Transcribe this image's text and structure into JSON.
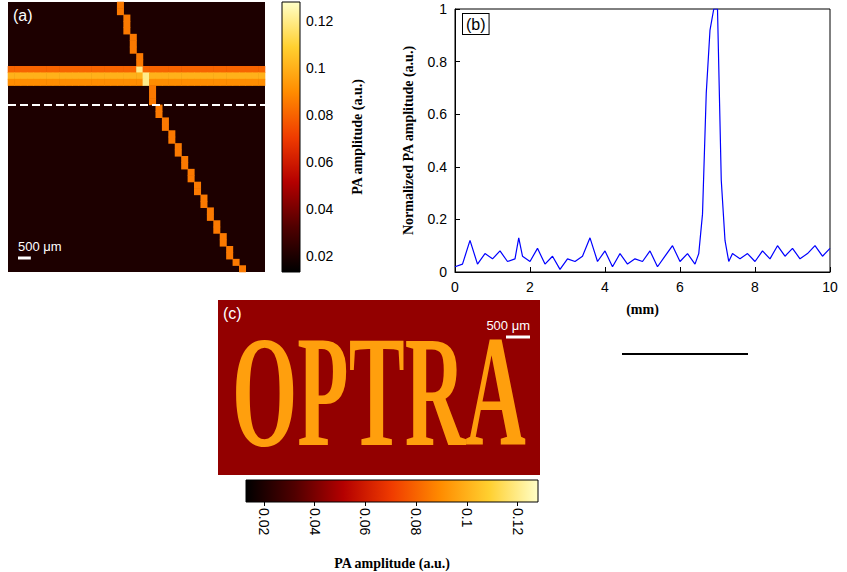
{
  "chart_data": [
    {
      "type": "heatmap",
      "panel": "(a)",
      "xlim": [
        0,
        10
      ],
      "ylim": [
        0,
        10.5
      ],
      "tick_labels": false,
      "cell_size": 0.25,
      "background": 0.02,
      "profile_y": 4.0,
      "scale_bar": {
        "length": 0.5,
        "label": "500 μm"
      },
      "color_bar": {
        "range": [
          0.013,
          0.128
        ],
        "ticks": [
          0.02,
          0.04,
          0.06,
          0.08,
          0.1,
          0.12
        ],
        "label": "PA amplitude (a.u.)",
        "colors": [
          "#000000",
          "#500000",
          "#b40000",
          "#f03c00",
          "#ff8c00",
          "#ffd030",
          "#ffffc8"
        ]
      },
      "cells": [
        [
          0.125,
          2.625,
          0.08
        ],
        [
          0.375,
          2.625,
          0.08
        ],
        [
          0.625,
          2.625,
          0.08
        ],
        [
          0.875,
          2.625,
          0.08
        ],
        [
          1.125,
          2.625,
          0.08
        ],
        [
          1.375,
          2.625,
          0.08
        ],
        [
          1.625,
          2.625,
          0.08
        ],
        [
          1.875,
          2.625,
          0.08
        ],
        [
          2.125,
          2.625,
          0.08
        ],
        [
          2.375,
          2.625,
          0.08
        ],
        [
          2.625,
          2.625,
          0.08
        ],
        [
          2.875,
          2.625,
          0.08
        ],
        [
          3.125,
          2.625,
          0.08
        ],
        [
          3.375,
          2.625,
          0.08
        ],
        [
          3.625,
          2.625,
          0.08
        ],
        [
          3.875,
          2.625,
          0.08
        ],
        [
          4.125,
          2.625,
          0.08
        ],
        [
          4.375,
          2.625,
          0.08
        ],
        [
          4.625,
          2.625,
          0.08
        ],
        [
          4.875,
          2.625,
          0.08
        ],
        [
          5.125,
          2.625,
          0.12
        ],
        [
          5.375,
          2.625,
          0.08
        ],
        [
          5.625,
          2.625,
          0.08
        ],
        [
          5.875,
          2.625,
          0.08
        ],
        [
          6.125,
          2.625,
          0.08
        ],
        [
          6.375,
          2.625,
          0.08
        ],
        [
          6.625,
          2.625,
          0.08
        ],
        [
          6.875,
          2.625,
          0.08
        ],
        [
          7.125,
          2.625,
          0.08
        ],
        [
          7.375,
          2.625,
          0.08
        ],
        [
          7.625,
          2.625,
          0.08
        ],
        [
          7.875,
          2.625,
          0.08
        ],
        [
          8.125,
          2.625,
          0.08
        ],
        [
          8.375,
          2.625,
          0.08
        ],
        [
          8.625,
          2.625,
          0.08
        ],
        [
          8.875,
          2.625,
          0.08
        ],
        [
          9.125,
          2.625,
          0.08
        ],
        [
          9.375,
          2.625,
          0.08
        ],
        [
          9.625,
          2.625,
          0.08
        ],
        [
          9.875,
          2.625,
          0.08
        ],
        [
          0.125,
          2.875,
          0.1
        ],
        [
          0.375,
          2.875,
          0.1
        ],
        [
          0.625,
          2.875,
          0.1
        ],
        [
          0.875,
          2.875,
          0.1
        ],
        [
          1.125,
          2.875,
          0.1
        ],
        [
          1.375,
          2.875,
          0.1
        ],
        [
          1.625,
          2.875,
          0.1
        ],
        [
          1.875,
          2.875,
          0.1
        ],
        [
          2.125,
          2.875,
          0.1
        ],
        [
          2.375,
          2.875,
          0.1
        ],
        [
          2.625,
          2.875,
          0.1
        ],
        [
          2.875,
          2.875,
          0.1
        ],
        [
          3.125,
          2.875,
          0.1
        ],
        [
          3.375,
          2.875,
          0.1
        ],
        [
          3.625,
          2.875,
          0.1
        ],
        [
          3.875,
          2.875,
          0.1
        ],
        [
          4.125,
          2.875,
          0.1
        ],
        [
          4.375,
          2.875,
          0.1
        ],
        [
          4.625,
          2.875,
          0.1
        ],
        [
          4.875,
          2.875,
          0.1
        ],
        [
          5.125,
          2.875,
          0.1
        ],
        [
          5.375,
          2.875,
          0.12
        ],
        [
          5.625,
          2.875,
          0.1
        ],
        [
          5.875,
          2.875,
          0.1
        ],
        [
          6.125,
          2.875,
          0.1
        ],
        [
          6.375,
          2.875,
          0.1
        ],
        [
          6.625,
          2.875,
          0.1
        ],
        [
          6.875,
          2.875,
          0.1
        ],
        [
          7.125,
          2.875,
          0.1
        ],
        [
          7.375,
          2.875,
          0.1
        ],
        [
          7.625,
          2.875,
          0.1
        ],
        [
          7.875,
          2.875,
          0.1
        ],
        [
          8.125,
          2.875,
          0.1
        ],
        [
          8.375,
          2.875,
          0.1
        ],
        [
          8.625,
          2.875,
          0.1
        ],
        [
          8.875,
          2.875,
          0.1
        ],
        [
          9.125,
          2.875,
          0.1
        ],
        [
          9.375,
          2.875,
          0.1
        ],
        [
          9.625,
          2.875,
          0.1
        ],
        [
          9.875,
          2.875,
          0.1
        ],
        [
          0.125,
          3.125,
          0.09
        ],
        [
          0.375,
          3.125,
          0.09
        ],
        [
          0.625,
          3.125,
          0.09
        ],
        [
          0.875,
          3.125,
          0.09
        ],
        [
          1.125,
          3.125,
          0.09
        ],
        [
          1.375,
          3.125,
          0.09
        ],
        [
          1.625,
          3.125,
          0.09
        ],
        [
          1.875,
          3.125,
          0.09
        ],
        [
          2.125,
          3.125,
          0.09
        ],
        [
          2.375,
          3.125,
          0.09
        ],
        [
          2.625,
          3.125,
          0.09
        ],
        [
          2.875,
          3.125,
          0.09
        ],
        [
          3.125,
          3.125,
          0.09
        ],
        [
          3.375,
          3.125,
          0.09
        ],
        [
          3.625,
          3.125,
          0.09
        ],
        [
          3.875,
          3.125,
          0.09
        ],
        [
          4.125,
          3.125,
          0.09
        ],
        [
          4.375,
          3.125,
          0.09
        ],
        [
          4.625,
          3.125,
          0.09
        ],
        [
          4.875,
          3.125,
          0.09
        ],
        [
          5.125,
          3.125,
          0.09
        ],
        [
          5.375,
          3.125,
          0.12
        ],
        [
          5.625,
          3.125,
          0.09
        ],
        [
          5.875,
          3.125,
          0.09
        ],
        [
          6.125,
          3.125,
          0.09
        ],
        [
          6.375,
          3.125,
          0.09
        ],
        [
          6.625,
          3.125,
          0.09
        ],
        [
          6.875,
          3.125,
          0.09
        ],
        [
          7.125,
          3.125,
          0.09
        ],
        [
          7.375,
          3.125,
          0.09
        ],
        [
          7.625,
          3.125,
          0.09
        ],
        [
          7.875,
          3.125,
          0.09
        ],
        [
          8.125,
          3.125,
          0.09
        ],
        [
          8.375,
          3.125,
          0.09
        ],
        [
          8.625,
          3.125,
          0.09
        ],
        [
          8.875,
          3.125,
          0.09
        ],
        [
          9.125,
          3.125,
          0.09
        ],
        [
          9.375,
          3.125,
          0.09
        ],
        [
          9.625,
          3.125,
          0.09
        ],
        [
          9.875,
          3.125,
          0.09
        ],
        [
          4.375,
          0.125,
          0.085
        ],
        [
          4.375,
          0.375,
          0.085
        ],
        [
          4.625,
          0.625,
          0.085
        ],
        [
          4.625,
          0.875,
          0.085
        ],
        [
          4.625,
          1.125,
          0.085
        ],
        [
          4.875,
          1.375,
          0.085
        ],
        [
          4.875,
          1.625,
          0.085
        ],
        [
          4.875,
          1.875,
          0.085
        ],
        [
          5.125,
          2.125,
          0.085
        ],
        [
          5.125,
          2.375,
          0.085
        ],
        [
          5.625,
          3.375,
          0.085
        ],
        [
          5.625,
          3.625,
          0.085
        ],
        [
          5.625,
          3.875,
          0.085
        ],
        [
          5.875,
          4.125,
          0.085
        ],
        [
          5.875,
          4.375,
          0.085
        ],
        [
          6.125,
          4.625,
          0.085
        ],
        [
          6.125,
          4.875,
          0.085
        ],
        [
          6.375,
          5.125,
          0.085
        ],
        [
          6.375,
          5.375,
          0.085
        ],
        [
          6.625,
          5.625,
          0.085
        ],
        [
          6.625,
          5.875,
          0.085
        ],
        [
          6.875,
          6.125,
          0.085
        ],
        [
          6.875,
          6.375,
          0.085
        ],
        [
          7.125,
          6.625,
          0.085
        ],
        [
          7.125,
          6.875,
          0.085
        ],
        [
          7.375,
          7.125,
          0.085
        ],
        [
          7.375,
          7.375,
          0.085
        ],
        [
          7.625,
          7.625,
          0.085
        ],
        [
          7.625,
          7.875,
          0.085
        ],
        [
          7.875,
          8.125,
          0.085
        ],
        [
          7.875,
          8.375,
          0.085
        ],
        [
          8.125,
          8.625,
          0.085
        ],
        [
          8.125,
          8.875,
          0.085
        ],
        [
          8.375,
          9.125,
          0.085
        ],
        [
          8.375,
          9.375,
          0.085
        ],
        [
          8.625,
          9.625,
          0.085
        ],
        [
          8.625,
          9.875,
          0.085
        ],
        [
          8.875,
          10.125,
          0.085
        ],
        [
          9.125,
          10.375,
          0.085
        ]
      ]
    },
    {
      "type": "line",
      "panel": "(b)",
      "color": "#0000ff",
      "grid": false,
      "xlabel": "(mm)",
      "ylabel": "Normalized PA amplitude (a.u.)",
      "xlim": [
        0,
        10
      ],
      "ylim": [
        0,
        1
      ],
      "xticks": [
        0,
        2,
        4,
        6,
        8,
        10
      ],
      "yticks": [
        0,
        0.2,
        0.4,
        0.6,
        0.8,
        1
      ],
      "x": [
        0,
        0.2,
        0.4,
        0.6,
        0.8,
        1.0,
        1.2,
        1.4,
        1.6,
        1.7,
        1.8,
        2.0,
        2.2,
        2.4,
        2.6,
        2.8,
        3.0,
        3.2,
        3.4,
        3.6,
        3.8,
        4.0,
        4.2,
        4.4,
        4.6,
        4.8,
        5.0,
        5.2,
        5.4,
        5.6,
        5.8,
        6.0,
        6.2,
        6.4,
        6.5,
        6.6,
        6.7,
        6.8,
        6.9,
        7.0,
        7.1,
        7.2,
        7.3,
        7.4,
        7.6,
        7.8,
        8.0,
        8.2,
        8.4,
        8.6,
        8.8,
        9.0,
        9.2,
        9.4,
        9.6,
        9.8,
        10.0
      ],
      "values": [
        0.02,
        0.03,
        0.12,
        0.03,
        0.07,
        0.05,
        0.08,
        0.04,
        0.05,
        0.13,
        0.06,
        0.04,
        0.09,
        0.03,
        0.06,
        0.01,
        0.05,
        0.04,
        0.06,
        0.13,
        0.04,
        0.08,
        0.02,
        0.07,
        0.03,
        0.05,
        0.04,
        0.08,
        0.02,
        0.06,
        0.1,
        0.04,
        0.07,
        0.03,
        0.07,
        0.22,
        0.68,
        0.92,
        1.0,
        1.0,
        0.35,
        0.12,
        0.04,
        0.07,
        0.05,
        0.07,
        0.04,
        0.08,
        0.05,
        0.1,
        0.06,
        0.09,
        0.05,
        0.07,
        0.1,
        0.06,
        0.09
      ]
    },
    {
      "type": "image",
      "panel": "(c)",
      "xlim": [
        0,
        6.7
      ],
      "ylim": [
        0,
        3.6
      ],
      "tick_labels": false,
      "image_text": "OPTRA",
      "text_amplitude": 0.095,
      "background": 0.045,
      "scale_bar": {
        "length": 0.5,
        "label": "500 μm"
      },
      "color_bar": {
        "range": [
          0.013,
          0.128
        ],
        "ticks": [
          0.02,
          0.04,
          0.06,
          0.08,
          0.1,
          0.12
        ],
        "label": "PA amplitude (a.u.)",
        "orientation": "horizontal",
        "colors": [
          "#000000",
          "#500000",
          "#b40000",
          "#f03c00",
          "#ff8c00",
          "#ffd030",
          "#ffffc8"
        ]
      }
    }
  ]
}
